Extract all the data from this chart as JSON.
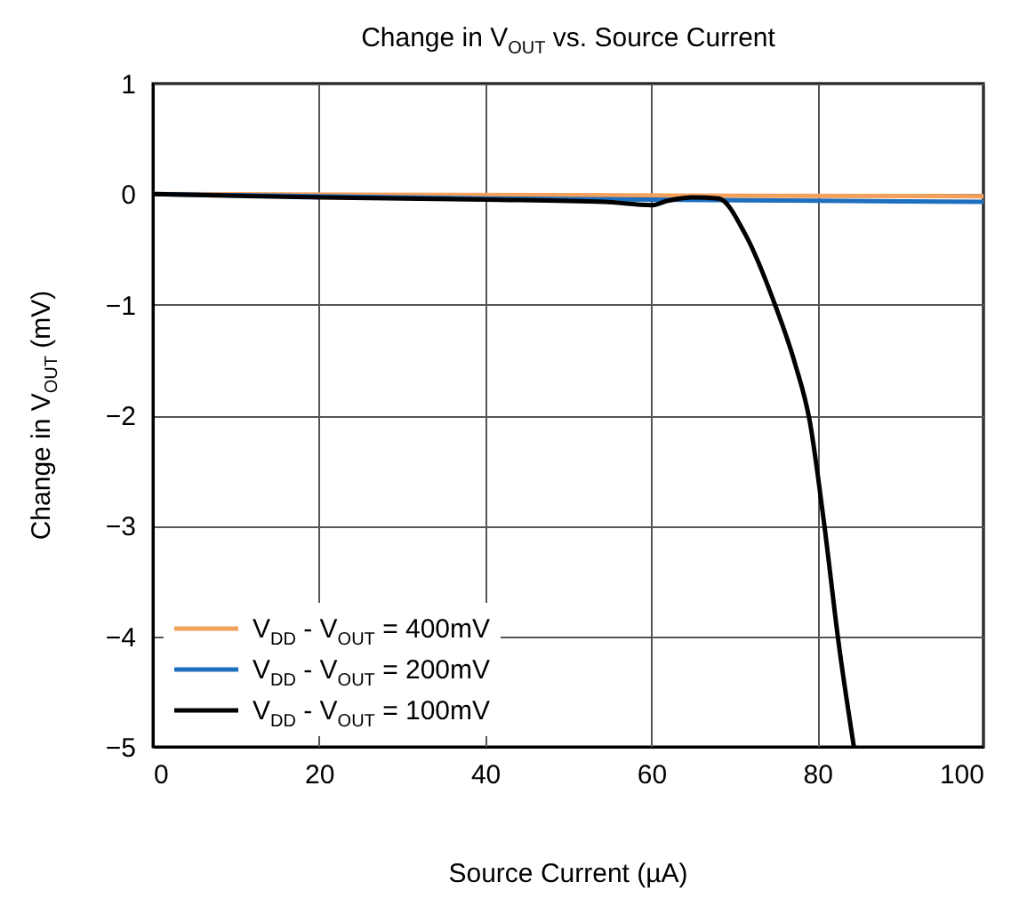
{
  "chart_data": {
    "type": "line",
    "title": "Change in V$_{OUT}$ vs. Source Current",
    "xlabel": "Source Current (µA)",
    "ylabel": "Change in V$_{OUT}$ (mV)",
    "xlim": [
      0,
      100
    ],
    "xticks": [
      0,
      20,
      40,
      60,
      80,
      100
    ],
    "ylim": [
      -5,
      1
    ],
    "yticks": [
      -5,
      -4,
      -3,
      -2,
      -1,
      0,
      1
    ],
    "grid": true,
    "legend": "bottom left",
    "series": [
      {
        "name": "V$_{DD}$ - V$_{OUT}$ = 400mV",
        "color": "#f4a15d",
        "x": [
          0,
          50,
          100
        ],
        "values": [
          0,
          -0.01,
          -0.02
        ]
      },
      {
        "name": "V$_{DD}$ - V$_{OUT}$ = 200mV",
        "color": "#1f6fbf",
        "x": [
          0,
          20,
          40,
          60,
          80,
          100
        ],
        "values": [
          0,
          -0.02,
          -0.04,
          -0.05,
          -0.06,
          -0.07
        ]
      },
      {
        "name": "V$_{DD}$ - V$_{OUT}$ = 100mV",
        "color": "#000000",
        "x": [
          0,
          20,
          40,
          54.3,
          60,
          62,
          64.9,
          68.1,
          71.3,
          74.9,
          77.3,
          79.1,
          80.8,
          82.6,
          84.4
        ],
        "values": [
          0,
          -0.03,
          -0.05,
          -0.07,
          -0.1,
          -0.06,
          -0.03,
          -0.04,
          -0.36,
          -1,
          -1.53,
          -2.06,
          -2.97,
          -4.08,
          -5
        ]
      }
    ]
  }
}
